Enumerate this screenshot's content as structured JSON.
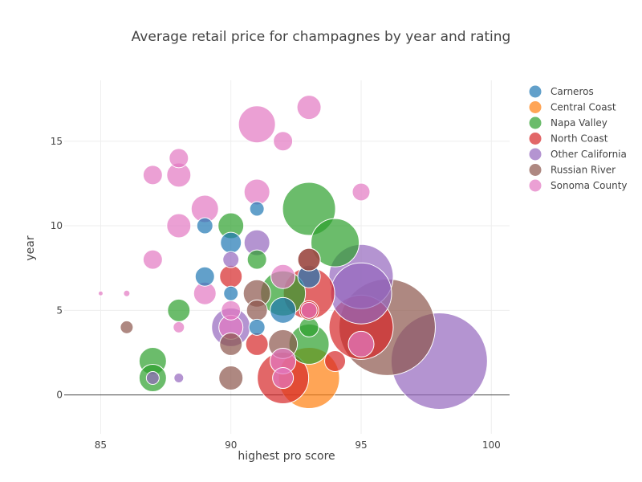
{
  "chart_data": {
    "type": "scatter",
    "title": "Average retail price for champagnes by year and rating",
    "xlabel": "highest pro score",
    "ylabel": "year",
    "xlim": [
      83.6,
      100.7
    ],
    "ylim": [
      -2.3,
      18.6
    ],
    "xticks": [
      "85",
      "90",
      "95",
      "100"
    ],
    "yticks": [
      "0",
      "5",
      "10",
      "15"
    ],
    "legend_position": "right",
    "size_note": "marker size = average retail price",
    "series": [
      {
        "name": "Carneros",
        "color": "#1f77b4",
        "points": [
          {
            "x": 89,
            "y": 7,
            "size": 12
          },
          {
            "x": 89,
            "y": 10,
            "size": 10
          },
          {
            "x": 90,
            "y": 9,
            "size": 13
          },
          {
            "x": 90,
            "y": 6,
            "size": 9
          },
          {
            "x": 91,
            "y": 11,
            "size": 9
          },
          {
            "x": 91,
            "y": 4,
            "size": 10
          },
          {
            "x": 92,
            "y": 5,
            "size": 16
          },
          {
            "x": 93,
            "y": 7,
            "size": 14
          }
        ]
      },
      {
        "name": "Central Coast",
        "color": "#ff7f0e",
        "points": [
          {
            "x": 93,
            "y": 1,
            "size": 38
          }
        ]
      },
      {
        "name": "Napa Valley",
        "color": "#2ca02c",
        "points": [
          {
            "x": 87,
            "y": 2,
            "size": 17
          },
          {
            "x": 87,
            "y": 1,
            "size": 17
          },
          {
            "x": 88,
            "y": 5,
            "size": 14
          },
          {
            "x": 90,
            "y": 10,
            "size": 16
          },
          {
            "x": 91,
            "y": 8,
            "size": 12
          },
          {
            "x": 92,
            "y": 6,
            "size": 28
          },
          {
            "x": 93,
            "y": 11,
            "size": 33
          },
          {
            "x": 93,
            "y": 3,
            "size": 25
          },
          {
            "x": 93,
            "y": 4,
            "size": 12
          },
          {
            "x": 94,
            "y": 9,
            "size": 30
          }
        ]
      },
      {
        "name": "North Coast",
        "color": "#d62728",
        "points": [
          {
            "x": 90,
            "y": 7,
            "size": 14
          },
          {
            "x": 91,
            "y": 3,
            "size": 14
          },
          {
            "x": 92,
            "y": 1,
            "size": 32
          },
          {
            "x": 93,
            "y": 6,
            "size": 32
          },
          {
            "x": 93,
            "y": 8,
            "size": 14
          },
          {
            "x": 93,
            "y": 5,
            "size": 12
          },
          {
            "x": 94,
            "y": 2,
            "size": 13
          },
          {
            "x": 95,
            "y": 4,
            "size": 40
          }
        ]
      },
      {
        "name": "Other California",
        "color": "#9467bd",
        "points": [
          {
            "x": 87,
            "y": 1,
            "size": 8
          },
          {
            "x": 88,
            "y": 1,
            "size": 6
          },
          {
            "x": 90,
            "y": 4,
            "size": 24
          },
          {
            "x": 90,
            "y": 8,
            "size": 10
          },
          {
            "x": 91,
            "y": 9,
            "size": 16
          },
          {
            "x": 95,
            "y": 7,
            "size": 40
          },
          {
            "x": 95,
            "y": 6,
            "size": 38
          },
          {
            "x": 98,
            "y": 2,
            "size": 60
          }
        ]
      },
      {
        "name": "Russian River",
        "color": "#8c564b",
        "points": [
          {
            "x": 86,
            "y": 4,
            "size": 8
          },
          {
            "x": 90,
            "y": 1,
            "size": 15
          },
          {
            "x": 90,
            "y": 3,
            "size": 14
          },
          {
            "x": 91,
            "y": 6,
            "size": 17
          },
          {
            "x": 91,
            "y": 5,
            "size": 13
          },
          {
            "x": 92,
            "y": 3,
            "size": 18
          },
          {
            "x": 93,
            "y": 8,
            "size": 14
          },
          {
            "x": 96,
            "y": 4,
            "size": 60
          }
        ]
      },
      {
        "name": "Sonoma County",
        "color": "#e377c2",
        "points": [
          {
            "x": 85,
            "y": 6,
            "size": 3
          },
          {
            "x": 86,
            "y": 6,
            "size": 4
          },
          {
            "x": 87,
            "y": 13,
            "size": 12
          },
          {
            "x": 87,
            "y": 8,
            "size": 12
          },
          {
            "x": 88,
            "y": 14,
            "size": 12
          },
          {
            "x": 88,
            "y": 13,
            "size": 15
          },
          {
            "x": 88,
            "y": 10,
            "size": 15
          },
          {
            "x": 88,
            "y": 4,
            "size": 7
          },
          {
            "x": 89,
            "y": 11,
            "size": 17
          },
          {
            "x": 89,
            "y": 6,
            "size": 14
          },
          {
            "x": 90,
            "y": 5,
            "size": 12
          },
          {
            "x": 90,
            "y": 4,
            "size": 15
          },
          {
            "x": 91,
            "y": 16,
            "size": 23
          },
          {
            "x": 91,
            "y": 12,
            "size": 16
          },
          {
            "x": 92,
            "y": 15,
            "size": 12
          },
          {
            "x": 92,
            "y": 7,
            "size": 15
          },
          {
            "x": 92,
            "y": 2,
            "size": 16
          },
          {
            "x": 92,
            "y": 1,
            "size": 13
          },
          {
            "x": 93,
            "y": 17,
            "size": 15
          },
          {
            "x": 93,
            "y": 5,
            "size": 10
          },
          {
            "x": 95,
            "y": 12,
            "size": 11
          },
          {
            "x": 95,
            "y": 3,
            "size": 16
          }
        ]
      }
    ]
  }
}
